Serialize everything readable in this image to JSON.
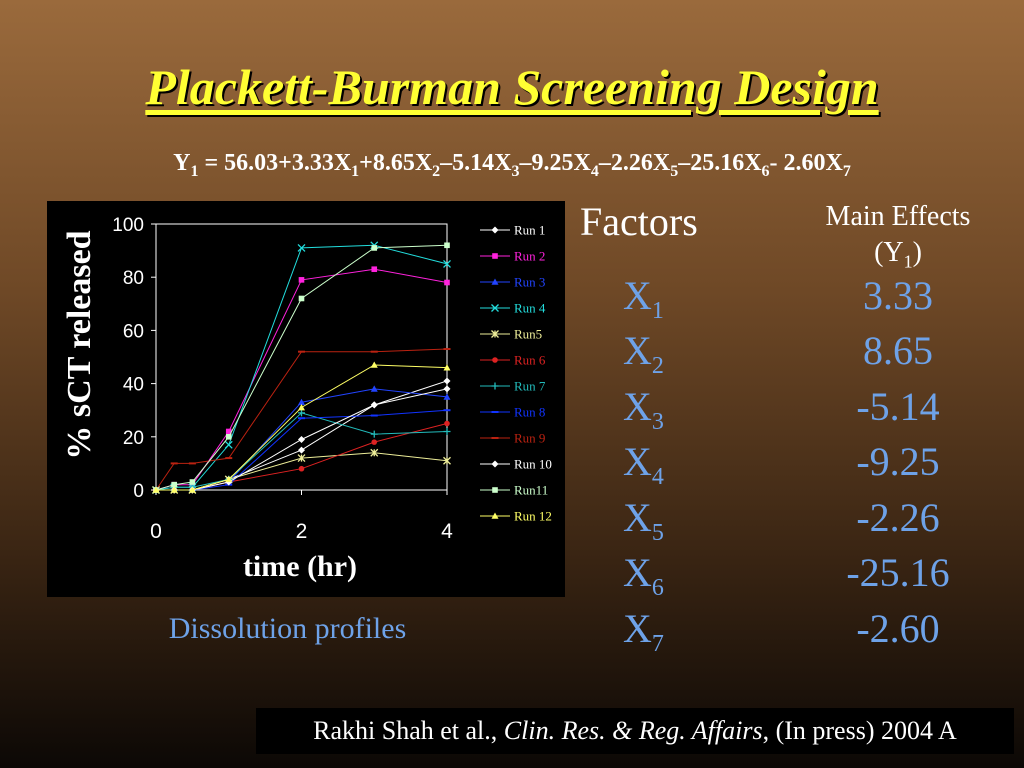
{
  "title": "Plackett-Burman Screening Design",
  "equation": {
    "y": "Y",
    "y_sub": "1",
    "t1": " = 56.03+3.33X",
    "s1": "1",
    "t2": "+8.65X",
    "s2": "2",
    "t3": "–5.14X",
    "s3": "3",
    "t4": "–9.25X",
    "s4": "4",
    "t5": "–2.26X",
    "s5": "5",
    "t6": "–25.16X",
    "s6": "6",
    "t7": "- 2.60X",
    "s7": "7"
  },
  "table": {
    "factors_header": "Factors",
    "effects_header_line1": "Main Effects",
    "effects_header_y": "(Y",
    "effects_header_sub": "1",
    "effects_header_close": ")",
    "rows": [
      {
        "factor": "X",
        "sub": "1",
        "effect": "3.33"
      },
      {
        "factor": "X",
        "sub": "2",
        "effect": "8.65"
      },
      {
        "factor": "X",
        "sub": "3",
        "effect": "-5.14"
      },
      {
        "factor": "X",
        "sub": "4",
        "effect": "-9.25"
      },
      {
        "factor": "X",
        "sub": "5",
        "effect": "-2.26"
      },
      {
        "factor": "X",
        "sub": "6",
        "effect": "-25.16"
      },
      {
        "factor": "X",
        "sub": "7",
        "effect": "-2.60"
      }
    ]
  },
  "caption": "Dissolution profiles",
  "citation": {
    "authors": "Rakhi Shah et al., ",
    "journal": "Clin. Res. & Reg. Affairs",
    "rest": ", (In press) 2004 A"
  },
  "colors": {
    "title": "#ffff33",
    "accent_blue": "#6ea2e8",
    "chart_bg": "#000000"
  },
  "chart_data": {
    "type": "line",
    "xlabel": "time (hr)",
    "ylabel": "% sCT released",
    "xlim": [
      0,
      4
    ],
    "ylim": [
      0,
      100
    ],
    "xticks": [
      0,
      2,
      4
    ],
    "yticks": [
      0,
      20,
      40,
      60,
      80,
      100
    ],
    "grid": false,
    "legend_position": "right",
    "series": [
      {
        "name": "Run 1",
        "color": "#ffffff",
        "marker": "diamond",
        "x": [
          0,
          0.25,
          0.5,
          1,
          2,
          3,
          4
        ],
        "y": [
          0,
          0,
          0,
          4,
          15,
          32,
          41
        ]
      },
      {
        "name": "Run 2",
        "color": "#ff22dd",
        "marker": "square",
        "x": [
          0,
          0.25,
          0.5,
          1,
          2,
          3,
          4
        ],
        "y": [
          0,
          2,
          2,
          22,
          79,
          83,
          78
        ]
      },
      {
        "name": "Run 3",
        "color": "#2244ff",
        "marker": "triangle",
        "x": [
          0,
          0.25,
          0.5,
          1,
          2,
          3,
          4
        ],
        "y": [
          0,
          0,
          0,
          3,
          33,
          38,
          35
        ]
      },
      {
        "name": "Run 4",
        "color": "#22dddd",
        "marker": "x",
        "x": [
          0,
          0.25,
          0.5,
          1,
          2,
          3,
          4
        ],
        "y": [
          0,
          1,
          1,
          17,
          91,
          92,
          85
        ]
      },
      {
        "name": "Run5",
        "color": "#eeee99",
        "marker": "star",
        "x": [
          0,
          0.25,
          0.5,
          1,
          2,
          3,
          4
        ],
        "y": [
          0,
          0,
          0,
          4,
          12,
          14,
          11
        ]
      },
      {
        "name": "Run 6",
        "color": "#dd2222",
        "marker": "circle",
        "x": [
          0,
          0.25,
          0.5,
          1,
          2,
          3,
          4
        ],
        "y": [
          0,
          0,
          0,
          3,
          8,
          18,
          25
        ]
      },
      {
        "name": "Run 7",
        "color": "#22bbbb",
        "marker": "plus",
        "x": [
          0,
          0.25,
          0.5,
          1,
          2,
          3,
          4
        ],
        "y": [
          0,
          1,
          1,
          4,
          29,
          21,
          22
        ]
      },
      {
        "name": "Run 8",
        "color": "#1133ff",
        "marker": "dash",
        "x": [
          0,
          0.25,
          0.5,
          1,
          2,
          3,
          4
        ],
        "y": [
          0,
          0,
          0,
          2,
          27,
          28,
          30
        ]
      },
      {
        "name": "Run 9",
        "color": "#bb2211",
        "marker": "dash",
        "x": [
          0,
          0.25,
          0.5,
          1,
          2,
          3,
          4
        ],
        "y": [
          0,
          10,
          10,
          12,
          52,
          52,
          53
        ]
      },
      {
        "name": "Run 10",
        "color": "#ffffff",
        "marker": "diamond",
        "x": [
          0,
          0.25,
          0.5,
          1,
          2,
          3,
          4
        ],
        "y": [
          0,
          0,
          0,
          3,
          19,
          32,
          38
        ]
      },
      {
        "name": "Run11",
        "color": "#ccffcc",
        "marker": "square",
        "x": [
          0,
          0.25,
          0.5,
          1,
          2,
          3,
          4
        ],
        "y": [
          0,
          2,
          3,
          20,
          72,
          91,
          92
        ]
      },
      {
        "name": "Run 12",
        "color": "#ffff66",
        "marker": "triangle",
        "x": [
          0,
          0.25,
          0.5,
          1,
          2,
          3,
          4
        ],
        "y": [
          0,
          0,
          0,
          4,
          31,
          47,
          46
        ]
      }
    ]
  }
}
